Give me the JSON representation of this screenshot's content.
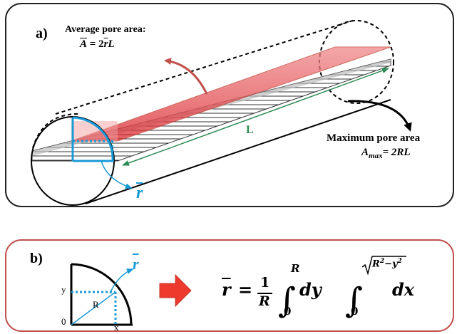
{
  "panel_a": {
    "tag": "a)",
    "average_title": "Average pore area:",
    "average_formula_lhs": "A",
    "average_formula_rhs": "= 2",
    "average_formula_r": "r",
    "average_formula_L": "L",
    "length_label": "L",
    "max_title": "Maximum pore area",
    "max_A": "A",
    "max_sub": "max",
    "max_rhs": "= 2RL",
    "rbar": "r"
  },
  "panel_b": {
    "tag": "b)",
    "rbar": "r",
    "label_y": "y",
    "label_R": "R",
    "label_0": "0",
    "label_x": "x",
    "eq_lhs": "r",
    "eq_equals": "=",
    "frac_num": "1",
    "frac_den": "R",
    "int1_upper": "R",
    "int1_lower": "0",
    "dy": "dy",
    "int2_upper_r": "R",
    "int2_upper_y": "y",
    "int2_upper_exp": "2",
    "int2_lower": "0",
    "dx": "dx"
  },
  "colors": {
    "border_a": "#222222",
    "border_b": "#c0504d",
    "pore_red": "#e0282e",
    "slab_gray": "#9a9a9a",
    "accent_blue": "#1a9ad6",
    "length_green": "#2e8b57",
    "arrow_red": "#ee3a2c"
  }
}
